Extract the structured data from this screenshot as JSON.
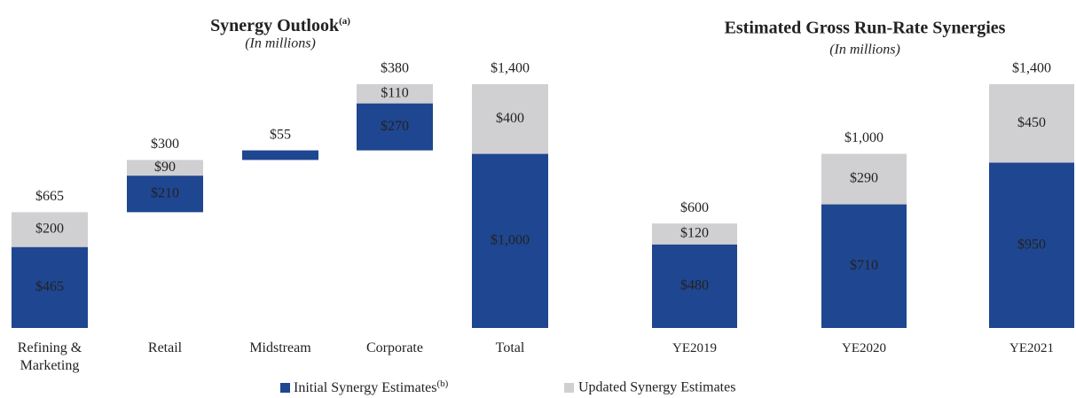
{
  "chart_data": [
    {
      "type": "waterfall",
      "title": "Synergy Outlook",
      "title_note": "(a)",
      "subtitle": "(In millions)",
      "categories": [
        "Refining & Marketing",
        "Retail",
        "Midstream",
        "Corporate",
        "Total"
      ],
      "series": [
        {
          "name": "Initial Synergy Estimates",
          "name_note": "(b)",
          "color": "#1f4690",
          "values": [
            465,
            210,
            55,
            270,
            1000
          ],
          "value_labels": [
            "$465",
            "$210",
            null,
            "$270",
            "$1,000"
          ]
        },
        {
          "name": "Updated Synergy Estimates",
          "color": "#d0d0d2",
          "values": [
            200,
            90,
            null,
            110,
            400
          ],
          "value_labels": [
            "$200",
            "$90",
            null,
            "$110",
            "$400"
          ]
        }
      ],
      "totals": [
        665,
        300,
        55,
        380,
        1400
      ],
      "total_labels": [
        "$665",
        "$300",
        "$55",
        "$380",
        "$1,400"
      ]
    },
    {
      "type": "stacked_bar",
      "title": "Estimated Gross Run-Rate Synergies",
      "subtitle": "(In millions)",
      "categories": [
        "YE2019",
        "YE2020",
        "YE2021"
      ],
      "series": [
        {
          "color": "#1f4690",
          "values": [
            480,
            710,
            950
          ],
          "value_labels": [
            "$480",
            "$710",
            "$950"
          ]
        },
        {
          "color": "#d0d0d2",
          "values": [
            120,
            290,
            450
          ],
          "value_labels": [
            "$120",
            "$290",
            "$450"
          ]
        }
      ],
      "totals": [
        600,
        1000,
        1400
      ],
      "total_labels": [
        "$600",
        "$1,000",
        "$1,400"
      ]
    }
  ]
}
